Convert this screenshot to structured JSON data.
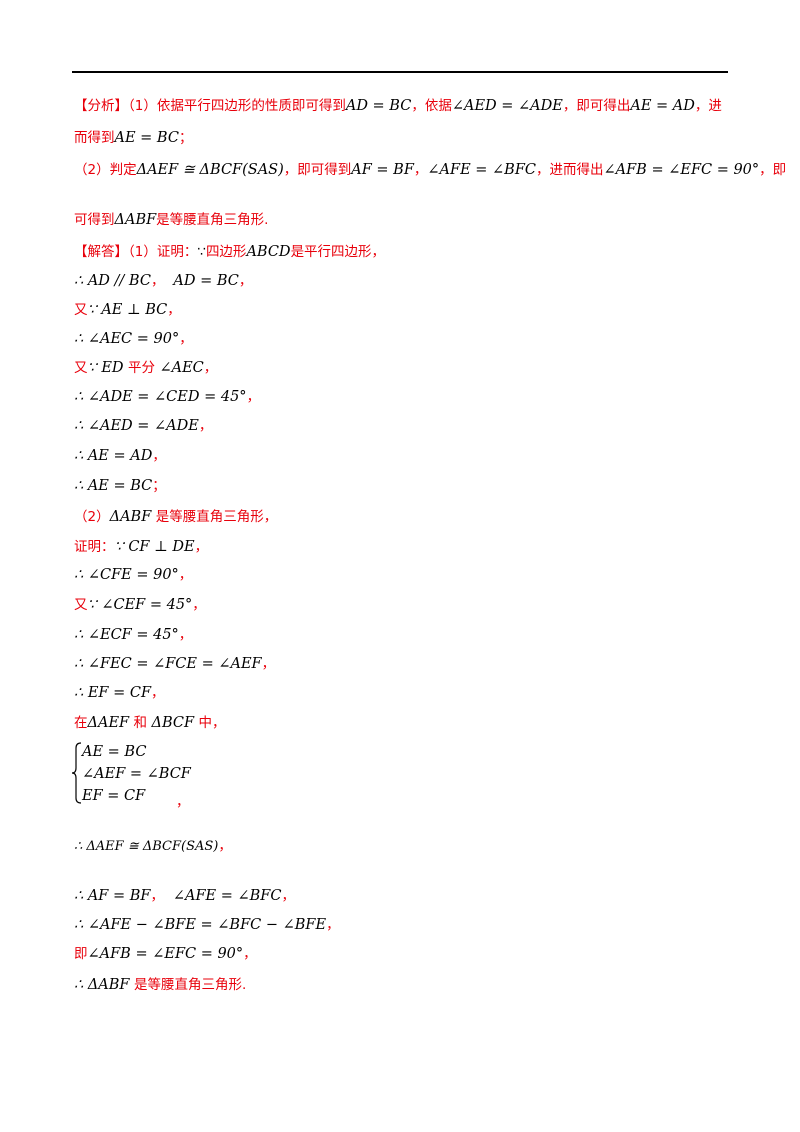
{
  "analysis": {
    "head": "【分析】（1）依据平行四边形的性质即可得到",
    "m1": "AD = BC",
    "t1": "，依据",
    "m2": "∠AED = ∠ADE",
    "t2": "，即可得出",
    "m3": "AE = AD",
    "t3": "，进",
    "t4": "而得到",
    "m4": "AE = BC",
    "t5": "；",
    "p2a": "（2）判定",
    "m5": "ΔAEF ≅ ΔBCF(SAS)",
    "p2b": "，即可得到",
    "m6": "AF = BF",
    "p2c": "，",
    "m7": "∠AFE = ∠BFC",
    "p2d": "，进而得出",
    "m8": "∠AFB = ∠EFC = 90°",
    "p2e": "，即",
    "p2f": "可得到",
    "m9": "ΔABF",
    "p2g": "是等腰直角三角形."
  },
  "answer": {
    "head": "【解答】（1）证明：",
    "because": "∵",
    "h1": "四边形",
    "m_abcd": "ABCD",
    "h2": "是平行四边形，",
    "l1": "∴ AD // BC",
    "l1b": "，",
    "l1c": "AD = BC",
    "l1d": "，",
    "l2a": "又",
    "l2b": "∵ AE ⊥ BC",
    "l2c": "，",
    "l3": "∴ ∠AEC = 90°",
    "l3c": "，",
    "l4a": "又",
    "l4b": "∵ ED",
    "l4c": "平分",
    "l4d": "∠AEC",
    "l4e": "，",
    "l5": "∴ ∠ADE = ∠CED = 45°",
    "l5c": "，",
    "l6": "∴ ∠AED = ∠ADE",
    "l6c": "，",
    "l7": "∴ AE = AD",
    "l7c": "，",
    "l8": "∴ AE = BC",
    "l8c": "；",
    "p2a": "（2）",
    "p2m": "ΔABF",
    "p2b": "是等腰直角三角形，",
    "l9a": "证明：",
    "l9b": "∵ CF ⊥ DE",
    "l9c": "，",
    "l10": "∴ ∠CFE = 90°",
    "l10c": "，",
    "l11a": "又",
    "l11b": "∵ ∠CEF = 45°",
    "l11c": "，",
    "l12": "∴ ∠ECF = 45°",
    "l12c": "，",
    "l13": "∴ ∠FEC = ∠FCE = ∠AEF",
    "l13c": "，",
    "l14": "∴ EF = CF",
    "l14c": "，",
    "l15a": "在",
    "l15b": "ΔAEF",
    "l15c": "和",
    "l15d": "ΔBCF",
    "l15e": "中，",
    "sys1": "AE = BC",
    "sys2": "∠AEF = ∠BCF",
    "sys3": "EF = CF",
    "sysc": "，",
    "l16": "∴ ΔAEF ≅ ΔBCF(SAS)",
    "l16c": "，",
    "l17": "∴ AF = BF",
    "l17b": "，",
    "l17c": "∠AFE = ∠BFC",
    "l17d": "，",
    "l18": "∴ ∠AFE − ∠BFE = ∠BFC − ∠BFE",
    "l18c": "，",
    "l19a": "即",
    "l19b": "∠AFB = ∠EFC = 90°",
    "l19c": "，",
    "l20": "∴ ΔABF",
    "l20b": "是等腰直角三角形."
  }
}
